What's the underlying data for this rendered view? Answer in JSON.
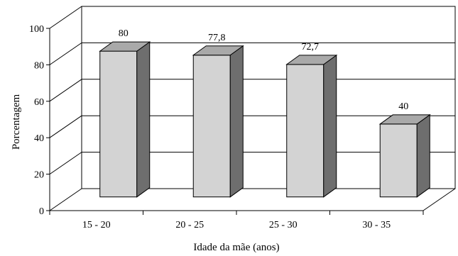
{
  "chart_data": {
    "type": "bar",
    "categories": [
      "15 - 20",
      "20 - 25",
      "25 - 30",
      "30 - 35"
    ],
    "values": [
      80,
      77.8,
      72.7,
      40
    ],
    "value_labels": [
      "80",
      "77,8",
      "72,7",
      "40"
    ],
    "y_ticks": [
      "0",
      "20",
      "40",
      "60",
      "80",
      "100"
    ],
    "ylim": [
      0,
      100
    ],
    "xlabel": "Idade da mãe (anos)",
    "ylabel": "Porcentagem",
    "title": "",
    "grid": true,
    "style": "3d"
  },
  "colors": {
    "bar_front": "#d3d3d3",
    "bar_top": "#a9a9a9",
    "bar_side": "#6e6e6e",
    "grid": "#000000"
  }
}
